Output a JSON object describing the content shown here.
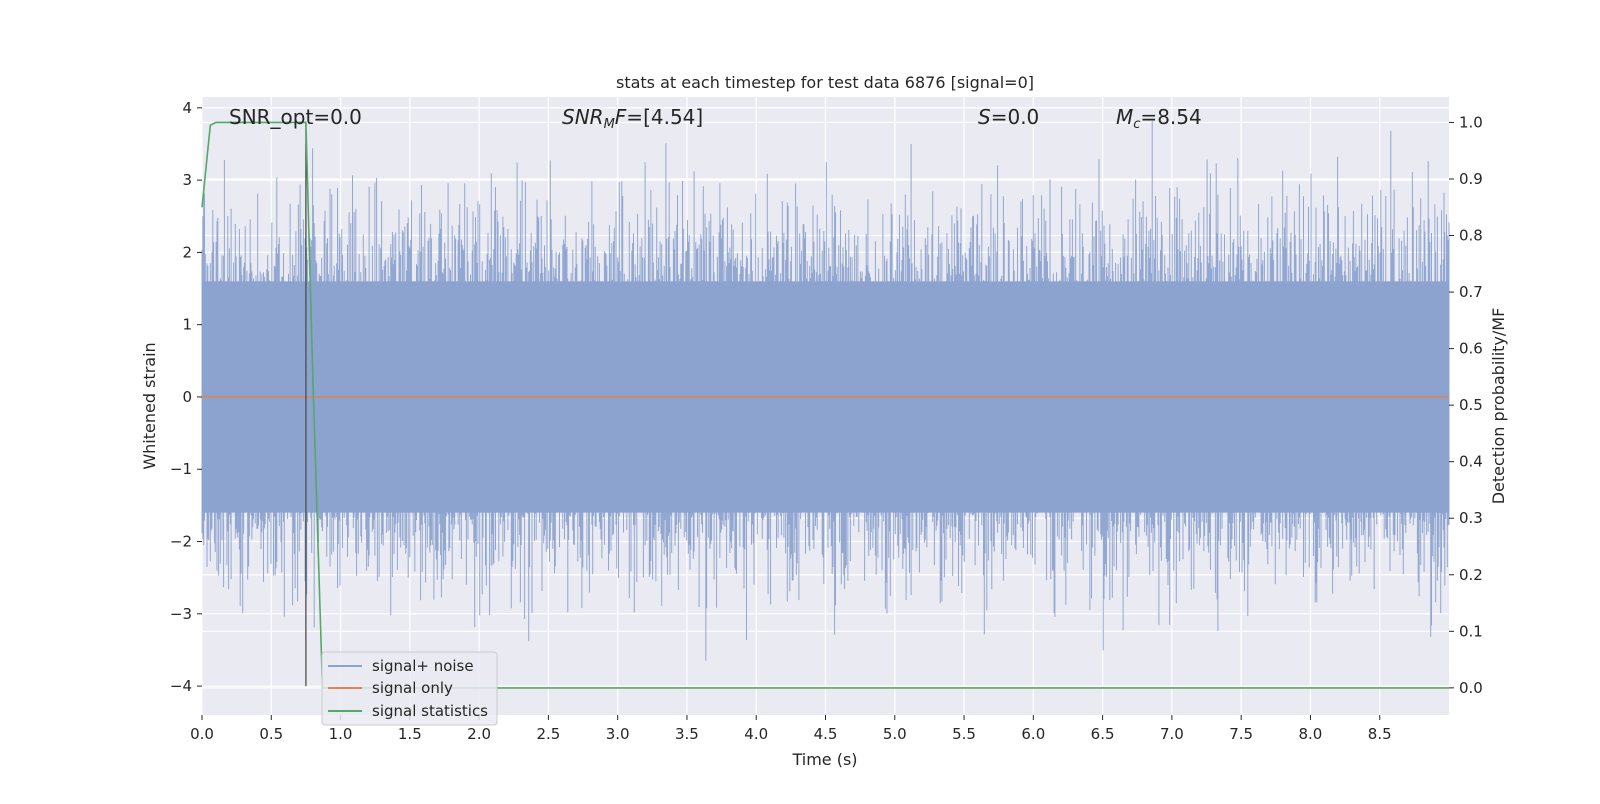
{
  "chart_data": {
    "type": "line",
    "title": "stats at each timestep for test data 6876 [signal=0]",
    "xlabel": "Time (s)",
    "ylabel": "Whitened strain",
    "ylabel_right": "Detection probability/MF",
    "xlim": [
      0.0,
      9.0
    ],
    "ylim": [
      -4.4,
      4.15
    ],
    "ylim_right": [
      -0.048,
      1.045
    ],
    "x_ticks": [
      "0.0",
      "0.5",
      "1.0",
      "1.5",
      "2.0",
      "2.5",
      "3.0",
      "3.5",
      "4.0",
      "4.5",
      "5.0",
      "5.5",
      "6.0",
      "6.5",
      "7.0",
      "7.5",
      "8.0",
      "8.5"
    ],
    "y_ticks": [
      "4",
      "3",
      "2",
      "1",
      "0",
      "−1",
      "−2",
      "−3",
      "−4"
    ],
    "y_ticks_right": [
      "1.0",
      "0.9",
      "0.8",
      "0.7",
      "0.6",
      "0.5",
      "0.4",
      "0.3",
      "0.2",
      "0.1",
      "0.0"
    ],
    "grid": true,
    "legend_position": "lower-left",
    "annotations": {
      "snr_opt": "SNR_opt=0.0",
      "snr_mf": "[4.54]",
      "s_value": "0.0",
      "mc_value": "8.54"
    },
    "series": [
      {
        "name": "signal+ noise",
        "color": "#8da3cf",
        "description_kind": "noise band",
        "band_range": [
          -1.6,
          1.6
        ],
        "peak_max": 3.82,
        "peak_min": -3.65
      },
      {
        "name": "signal only",
        "color": "#dd8452",
        "x": [
          0.0,
          9.0
        ],
        "y": [
          0.0,
          0.0
        ]
      },
      {
        "name": "signal statistics",
        "color": "#55a868",
        "axis": "right",
        "x": [
          0.0,
          0.06,
          0.1,
          0.2,
          0.3,
          0.4,
          0.5,
          0.6,
          0.7,
          0.75,
          0.8,
          0.87,
          0.9,
          1.5,
          3.0,
          5.0,
          7.0,
          9.0
        ],
        "y": [
          0.85,
          0.995,
          1.0,
          1.0,
          1.0,
          1.0,
          1.0,
          1.0,
          1.0,
          1.0,
          0.55,
          0.0,
          0.0,
          0.0,
          0.0,
          0.0,
          0.0,
          0.0
        ]
      }
    ],
    "marker_line_x": 0.75
  }
}
